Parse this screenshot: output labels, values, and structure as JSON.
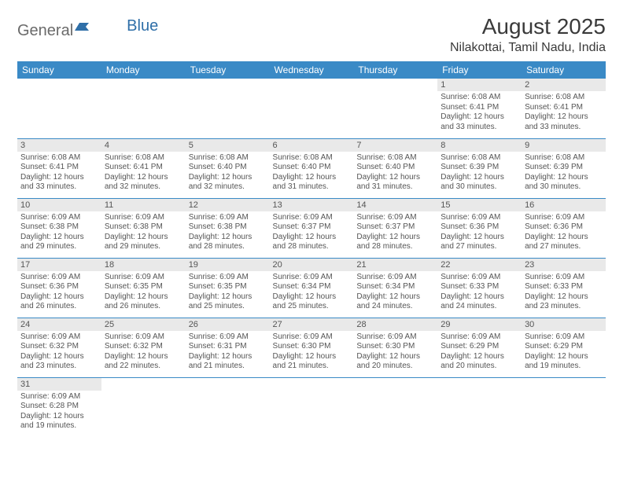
{
  "logo": {
    "general": "General",
    "blue": "Blue"
  },
  "title": "August 2025",
  "location": "Nilakottai, Tamil Nadu, India",
  "colors": {
    "header_bg": "#3a8ac6",
    "header_text": "#ffffff",
    "daynum_bg": "#e9e9e9",
    "border": "#3a8ac6",
    "text": "#555555"
  },
  "day_headers": [
    "Sunday",
    "Monday",
    "Tuesday",
    "Wednesday",
    "Thursday",
    "Friday",
    "Saturday"
  ],
  "weeks": [
    [
      null,
      null,
      null,
      null,
      null,
      {
        "n": "1",
        "sr": "Sunrise: 6:08 AM",
        "ss": "Sunset: 6:41 PM",
        "d1": "Daylight: 12 hours",
        "d2": "and 33 minutes."
      },
      {
        "n": "2",
        "sr": "Sunrise: 6:08 AM",
        "ss": "Sunset: 6:41 PM",
        "d1": "Daylight: 12 hours",
        "d2": "and 33 minutes."
      }
    ],
    [
      {
        "n": "3",
        "sr": "Sunrise: 6:08 AM",
        "ss": "Sunset: 6:41 PM",
        "d1": "Daylight: 12 hours",
        "d2": "and 33 minutes."
      },
      {
        "n": "4",
        "sr": "Sunrise: 6:08 AM",
        "ss": "Sunset: 6:41 PM",
        "d1": "Daylight: 12 hours",
        "d2": "and 32 minutes."
      },
      {
        "n": "5",
        "sr": "Sunrise: 6:08 AM",
        "ss": "Sunset: 6:40 PM",
        "d1": "Daylight: 12 hours",
        "d2": "and 32 minutes."
      },
      {
        "n": "6",
        "sr": "Sunrise: 6:08 AM",
        "ss": "Sunset: 6:40 PM",
        "d1": "Daylight: 12 hours",
        "d2": "and 31 minutes."
      },
      {
        "n": "7",
        "sr": "Sunrise: 6:08 AM",
        "ss": "Sunset: 6:40 PM",
        "d1": "Daylight: 12 hours",
        "d2": "and 31 minutes."
      },
      {
        "n": "8",
        "sr": "Sunrise: 6:08 AM",
        "ss": "Sunset: 6:39 PM",
        "d1": "Daylight: 12 hours",
        "d2": "and 30 minutes."
      },
      {
        "n": "9",
        "sr": "Sunrise: 6:08 AM",
        "ss": "Sunset: 6:39 PM",
        "d1": "Daylight: 12 hours",
        "d2": "and 30 minutes."
      }
    ],
    [
      {
        "n": "10",
        "sr": "Sunrise: 6:09 AM",
        "ss": "Sunset: 6:38 PM",
        "d1": "Daylight: 12 hours",
        "d2": "and 29 minutes."
      },
      {
        "n": "11",
        "sr": "Sunrise: 6:09 AM",
        "ss": "Sunset: 6:38 PM",
        "d1": "Daylight: 12 hours",
        "d2": "and 29 minutes."
      },
      {
        "n": "12",
        "sr": "Sunrise: 6:09 AM",
        "ss": "Sunset: 6:38 PM",
        "d1": "Daylight: 12 hours",
        "d2": "and 28 minutes."
      },
      {
        "n": "13",
        "sr": "Sunrise: 6:09 AM",
        "ss": "Sunset: 6:37 PM",
        "d1": "Daylight: 12 hours",
        "d2": "and 28 minutes."
      },
      {
        "n": "14",
        "sr": "Sunrise: 6:09 AM",
        "ss": "Sunset: 6:37 PM",
        "d1": "Daylight: 12 hours",
        "d2": "and 28 minutes."
      },
      {
        "n": "15",
        "sr": "Sunrise: 6:09 AM",
        "ss": "Sunset: 6:36 PM",
        "d1": "Daylight: 12 hours",
        "d2": "and 27 minutes."
      },
      {
        "n": "16",
        "sr": "Sunrise: 6:09 AM",
        "ss": "Sunset: 6:36 PM",
        "d1": "Daylight: 12 hours",
        "d2": "and 27 minutes."
      }
    ],
    [
      {
        "n": "17",
        "sr": "Sunrise: 6:09 AM",
        "ss": "Sunset: 6:36 PM",
        "d1": "Daylight: 12 hours",
        "d2": "and 26 minutes."
      },
      {
        "n": "18",
        "sr": "Sunrise: 6:09 AM",
        "ss": "Sunset: 6:35 PM",
        "d1": "Daylight: 12 hours",
        "d2": "and 26 minutes."
      },
      {
        "n": "19",
        "sr": "Sunrise: 6:09 AM",
        "ss": "Sunset: 6:35 PM",
        "d1": "Daylight: 12 hours",
        "d2": "and 25 minutes."
      },
      {
        "n": "20",
        "sr": "Sunrise: 6:09 AM",
        "ss": "Sunset: 6:34 PM",
        "d1": "Daylight: 12 hours",
        "d2": "and 25 minutes."
      },
      {
        "n": "21",
        "sr": "Sunrise: 6:09 AM",
        "ss": "Sunset: 6:34 PM",
        "d1": "Daylight: 12 hours",
        "d2": "and 24 minutes."
      },
      {
        "n": "22",
        "sr": "Sunrise: 6:09 AM",
        "ss": "Sunset: 6:33 PM",
        "d1": "Daylight: 12 hours",
        "d2": "and 24 minutes."
      },
      {
        "n": "23",
        "sr": "Sunrise: 6:09 AM",
        "ss": "Sunset: 6:33 PM",
        "d1": "Daylight: 12 hours",
        "d2": "and 23 minutes."
      }
    ],
    [
      {
        "n": "24",
        "sr": "Sunrise: 6:09 AM",
        "ss": "Sunset: 6:32 PM",
        "d1": "Daylight: 12 hours",
        "d2": "and 23 minutes."
      },
      {
        "n": "25",
        "sr": "Sunrise: 6:09 AM",
        "ss": "Sunset: 6:32 PM",
        "d1": "Daylight: 12 hours",
        "d2": "and 22 minutes."
      },
      {
        "n": "26",
        "sr": "Sunrise: 6:09 AM",
        "ss": "Sunset: 6:31 PM",
        "d1": "Daylight: 12 hours",
        "d2": "and 21 minutes."
      },
      {
        "n": "27",
        "sr": "Sunrise: 6:09 AM",
        "ss": "Sunset: 6:30 PM",
        "d1": "Daylight: 12 hours",
        "d2": "and 21 minutes."
      },
      {
        "n": "28",
        "sr": "Sunrise: 6:09 AM",
        "ss": "Sunset: 6:30 PM",
        "d1": "Daylight: 12 hours",
        "d2": "and 20 minutes."
      },
      {
        "n": "29",
        "sr": "Sunrise: 6:09 AM",
        "ss": "Sunset: 6:29 PM",
        "d1": "Daylight: 12 hours",
        "d2": "and 20 minutes."
      },
      {
        "n": "30",
        "sr": "Sunrise: 6:09 AM",
        "ss": "Sunset: 6:29 PM",
        "d1": "Daylight: 12 hours",
        "d2": "and 19 minutes."
      }
    ],
    [
      {
        "n": "31",
        "sr": "Sunrise: 6:09 AM",
        "ss": "Sunset: 6:28 PM",
        "d1": "Daylight: 12 hours",
        "d2": "and 19 minutes."
      },
      null,
      null,
      null,
      null,
      null,
      null
    ]
  ]
}
